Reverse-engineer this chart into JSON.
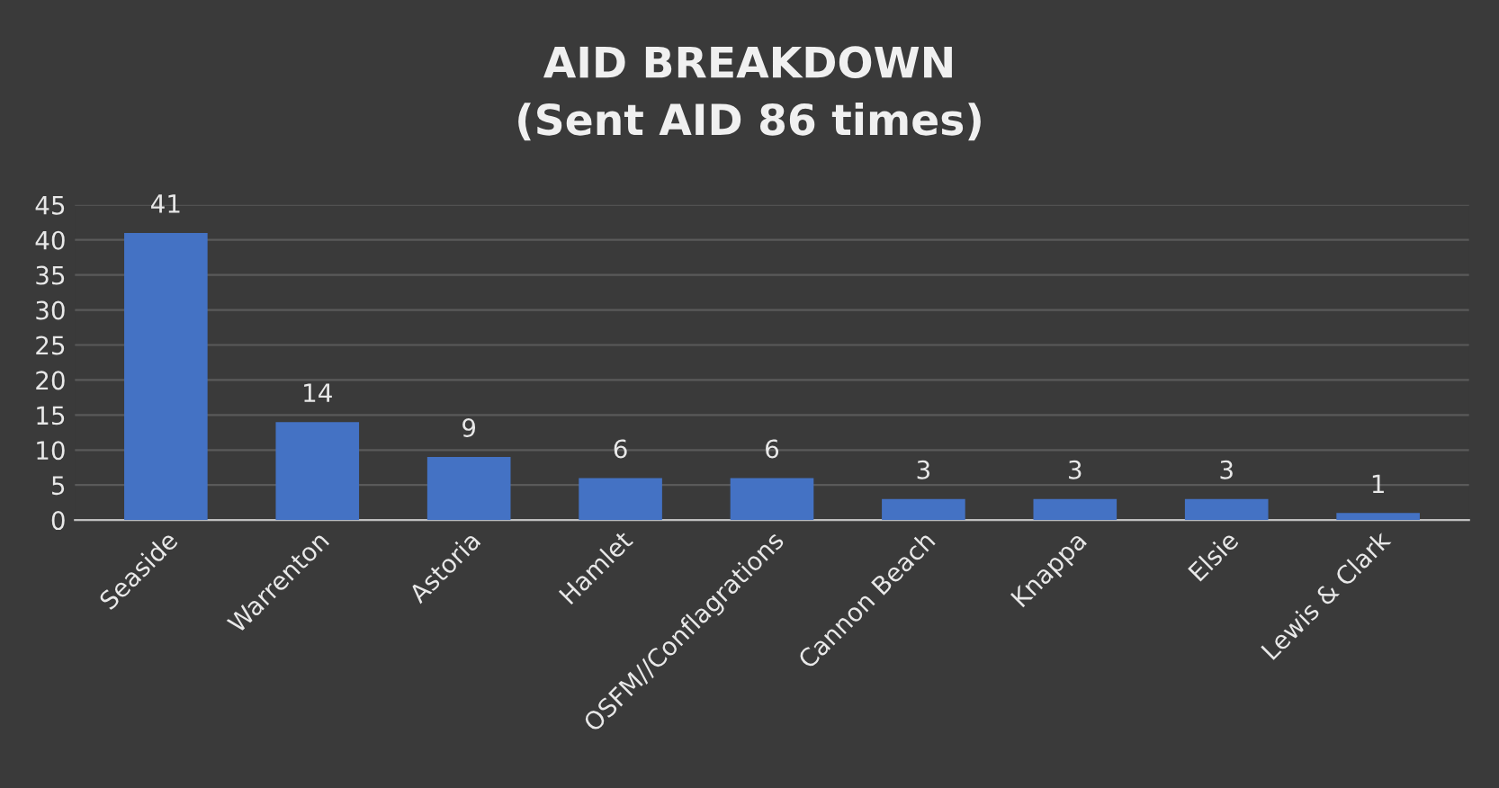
{
  "chart_data": {
    "type": "bar",
    "title": "AID BREAKDOWN\n(Sent AID 86 times)",
    "categories": [
      "Seaside",
      "Warrenton",
      "Astoria",
      "Hamlet",
      "OSFM//Conflagrations",
      "Cannon Beach",
      "Knappa",
      "Elsie",
      "Lewis & Clark"
    ],
    "values": [
      41,
      14,
      9,
      6,
      6,
      3,
      3,
      3,
      1
    ],
    "color": "#4472c4",
    "ylim": [
      0,
      45
    ],
    "yticks": [
      0,
      5,
      10,
      15,
      20,
      25,
      30,
      35,
      40,
      45
    ],
    "grid": "y",
    "data_labels": true
  }
}
